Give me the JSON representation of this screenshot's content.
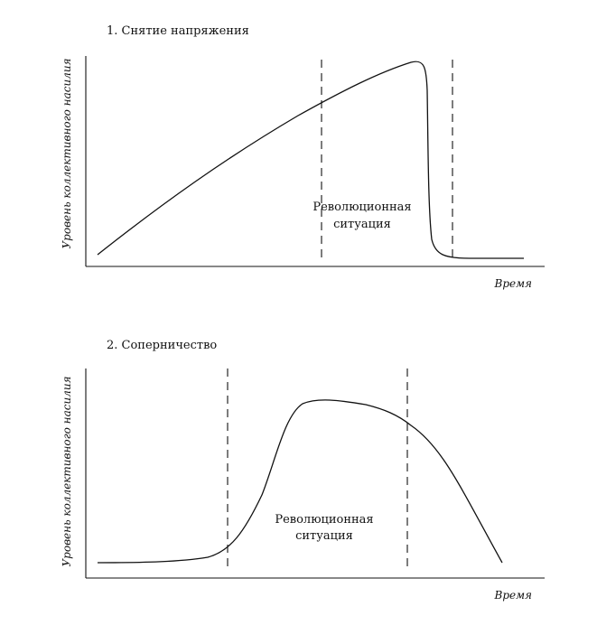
{
  "chart_data": [
    {
      "type": "line",
      "title": "1. Снятие напряжения",
      "xlabel": "Время",
      "ylabel": "Уровень коллективного насилия",
      "region_label": [
        "Революционная",
        "ситуация"
      ],
      "shape": "rising-then-collapse",
      "colors": {
        "line": "#111111",
        "background": "#ffffff"
      }
    },
    {
      "type": "line",
      "title": "2. Соперничество",
      "xlabel": "Время",
      "ylabel": "Уровень коллективного насилия",
      "region_label": [
        "Революционная",
        "ситуация"
      ],
      "shape": "rise-plateau-decline",
      "colors": {
        "line": "#111111",
        "background": "#ffffff"
      }
    }
  ]
}
